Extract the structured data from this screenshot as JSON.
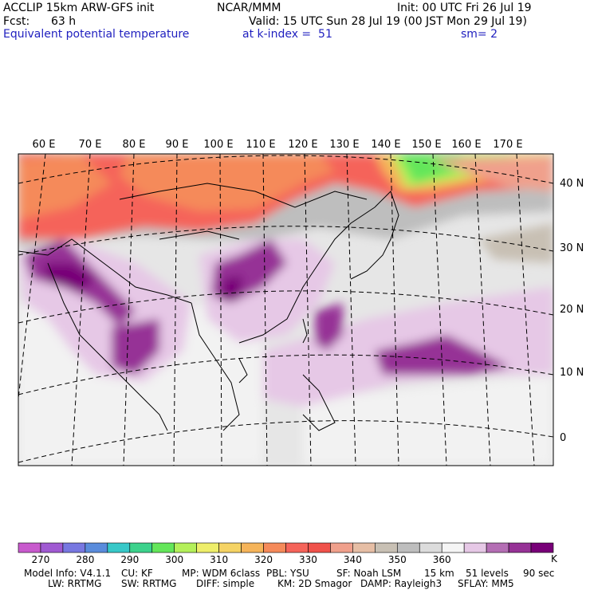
{
  "header": {
    "model": "ACCLIP 15km ARW-GFS init",
    "center": "NCAR/MMM",
    "init": "Init: 00 UTC Fri 26 Jul 19",
    "fcst_label": "Fcst:",
    "fcst_value": "63 h",
    "valid": "Valid: 15 UTC Sun 28 Jul 19 (00 JST Mon 29 Jul 19)",
    "field": "Equivalent potential temperature",
    "level": "at k-index =  51",
    "smooth": "sm= 2"
  },
  "map": {
    "lon_labels": [
      "60 E",
      "70 E",
      "80 E",
      "90 E",
      "100 E",
      "110 E",
      "120 E",
      "130 E",
      "140 E",
      "150 E",
      "160 E",
      "170 E"
    ],
    "lat_labels": [
      "40 N",
      "30 N",
      "20 N",
      "10 N",
      "0"
    ]
  },
  "colorbar": {
    "unit": "K",
    "colors": [
      "#c85acd",
      "#a05ad2",
      "#7878e1",
      "#5a8cdc",
      "#37c8c8",
      "#3cd28c",
      "#64e65a",
      "#b4f05a",
      "#eeee6a",
      "#f5d364",
      "#f5b45a",
      "#f58a5a",
      "#f5645a",
      "#f0524b",
      "#f0a08c",
      "#e6bea5",
      "#c8c0b4",
      "#bebebe",
      "#dcdcdc",
      "#f5f5f5",
      "#e6c8e6",
      "#b46eb4",
      "#963296",
      "#780078"
    ],
    "ticks": [
      "270",
      "280",
      "290",
      "300",
      "310",
      "320",
      "330",
      "340",
      "350",
      "360"
    ]
  },
  "footer": {
    "line1": [
      "Model Info: V4.1.1",
      "CU: KF",
      "MP: WDM 6class",
      "PBL: YSU",
      "SF: Noah LSM",
      "15 km",
      "51 levels",
      "90 sec"
    ],
    "line2": [
      "LW: RRTMG",
      "SW: RRTMG",
      "DIFF: simple",
      "KM: 2D Smagor",
      "DAMP: Rayleigh3",
      "SFLAY: MM5"
    ]
  }
}
